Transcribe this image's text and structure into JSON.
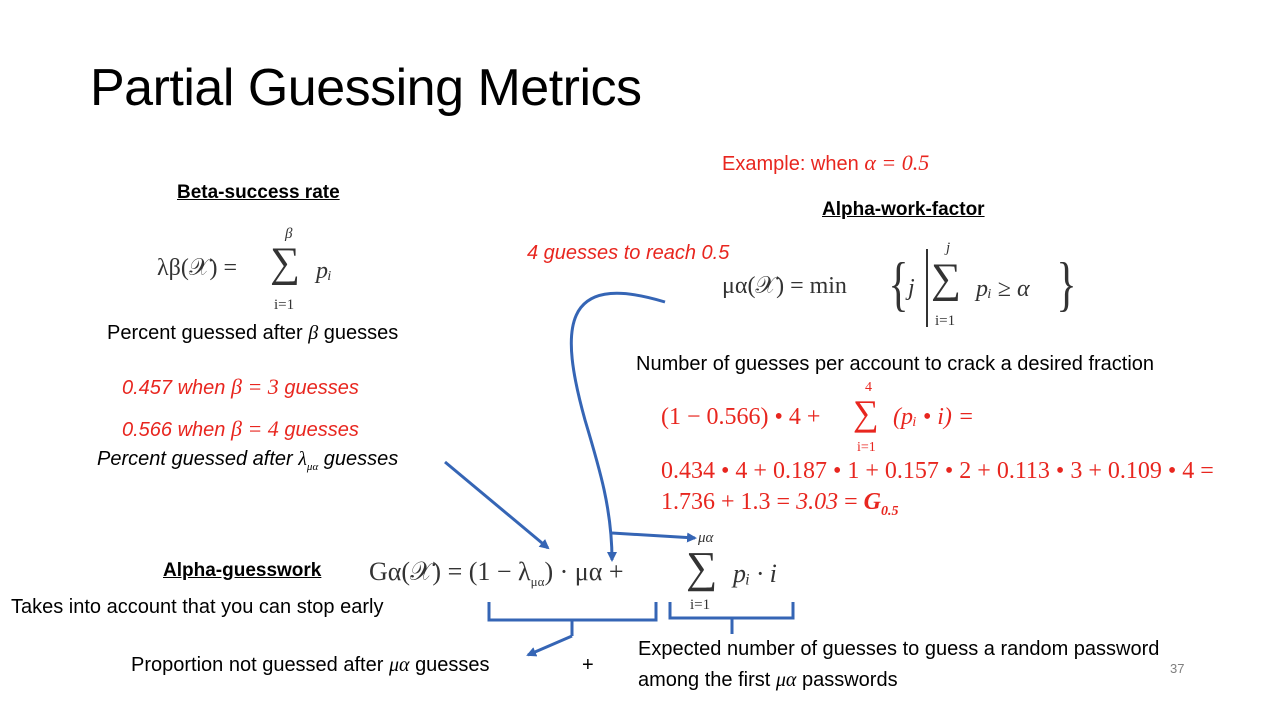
{
  "slide": {
    "title": "Partial Guessing Metrics",
    "page_number": "37"
  },
  "beta": {
    "heading": "Beta-success rate",
    "formula_lhs": "λβ(𝒳) =",
    "sum_top": "β",
    "sum_bottom": "i=1",
    "sum_body": "pᵢ",
    "desc_pre": "Percent guessed after",
    "desc_sym": "β",
    "desc_post": "guesses",
    "ex1_val": "0.457 when",
    "ex1_eq": "β = 3",
    "ex1_post": "guesses",
    "ex2_val": "0.566 when",
    "ex2_eq": "β = 4",
    "ex2_post": "guesses",
    "lambda_desc_pre": "Percent guessed after",
    "lambda_desc_sym": "λ",
    "lambda_desc_sub": "μα",
    "lambda_desc_post": "guesses"
  },
  "alpha_work": {
    "example_pre": "Example: when",
    "example_eq": "α = 0.5",
    "heading": "Alpha-work-factor",
    "guesses_note": "4 guesses to reach 0.5",
    "formula_lhs": "μα(𝒳) = min",
    "formula_j": "j",
    "sum_top": "j",
    "sum_bottom": "i=1",
    "sum_body": "pᵢ ≥ α",
    "desc": "Number of guesses per account to crack a desired fraction"
  },
  "calc": {
    "line1_pre": "(1 − 0.566) • 4 +",
    "line1_sum_top": "4",
    "line1_sum_bottom": "i=1",
    "line1_post": "(pᵢ • i) =",
    "line2": "0.434 • 4 + 0.187 • 1 + 0.157 • 2 + 0.113 • 3 + 0.109 • 4 =",
    "line3_pre": "1.736 + 1.3 =",
    "line3_result": "3.03",
    "line3_eq": "=",
    "line3_g": "G",
    "line3_g_sub": "0.5"
  },
  "guesswork": {
    "heading": "Alpha-guesswork",
    "subtext": "Takes into account that you can stop early",
    "formula_lhs": "Gα(𝒳) = (1 − λ",
    "formula_lambda_sub": "μα",
    "formula_mid": ") · μα +",
    "sum_top": "μα",
    "sum_bottom": "i=1",
    "sum_body": "pᵢ · i",
    "left_brace_pre": "Proportion not guessed after",
    "left_brace_sym": "μα",
    "left_brace_post": "guesses",
    "plus": "+",
    "right_brace_line1": "Expected number of guesses to guess a random password",
    "right_brace_line2_pre": "among the first",
    "right_brace_line2_sym": "μα",
    "right_brace_line2_post": "passwords"
  },
  "colors": {
    "accent_red": "#e8261f",
    "arrow_blue": "#3565b5"
  }
}
